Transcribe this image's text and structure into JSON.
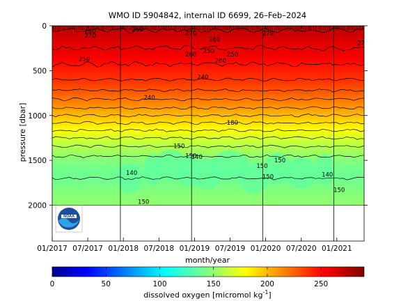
{
  "chart_data": {
    "type": "heatmap",
    "title": "WMO ID 5904842, internal ID 6699, 26–Feb–2024",
    "xlabel": "month/year",
    "ylabel": "pressure [dbar]",
    "x_ticks": [
      "01/2017",
      "07/2017",
      "01/2018",
      "07/2018",
      "01/2019",
      "07/2019",
      "01/2020",
      "07/2020",
      "01/2021"
    ],
    "x_range": [
      "2017-01",
      "2021-05"
    ],
    "y_ticks": [
      0,
      500,
      1000,
      1500,
      2000
    ],
    "y_range": [
      0,
      2400
    ],
    "y_reversed": true,
    "data_max_pressure": 2000,
    "profile_marks": "top",
    "vertical_markers": [
      "2017-12",
      "2018-12",
      "2019-12",
      "2020-12"
    ],
    "colorbar": {
      "label": "dissolved oxygen [micromol kg",
      "label_sup": "-1",
      "label_end": "]",
      "range": [
        0,
        290
      ],
      "ticks": [
        0,
        50,
        100,
        150,
        200,
        250
      ],
      "colormap": "jet"
    },
    "oxygen_profile": [
      {
        "p": 0,
        "o2": 272
      },
      {
        "p": 100,
        "o2": 268
      },
      {
        "p": 200,
        "o2": 262
      },
      {
        "p": 300,
        "o2": 258
      },
      {
        "p": 400,
        "o2": 252
      },
      {
        "p": 500,
        "o2": 245
      },
      {
        "p": 600,
        "o2": 240
      },
      {
        "p": 700,
        "o2": 232
      },
      {
        "p": 800,
        "o2": 222
      },
      {
        "p": 900,
        "o2": 212
      },
      {
        "p": 1000,
        "o2": 200
      },
      {
        "p": 1100,
        "o2": 188
      },
      {
        "p": 1200,
        "o2": 176
      },
      {
        "p": 1300,
        "o2": 164
      },
      {
        "p": 1400,
        "o2": 155
      },
      {
        "p": 1500,
        "o2": 146
      },
      {
        "p": 1600,
        "o2": 141
      },
      {
        "p": 1700,
        "o2": 140
      },
      {
        "p": 1800,
        "o2": 144
      },
      {
        "p": 1900,
        "o2": 148
      },
      {
        "p": 2000,
        "o2": 150
      }
    ],
    "contour_levels": [
      270,
      260,
      250,
      240,
      230,
      220,
      210,
      200,
      190,
      180,
      170,
      160,
      150,
      140
    ],
    "contour_labels": [
      {
        "text": "270",
        "t": "2017-07",
        "p": 110
      },
      {
        "text": "250",
        "t": "2017-06",
        "p": 370
      },
      {
        "text": "260",
        "t": "2017-07",
        "p": 60
      },
      {
        "text": "260",
        "t": "2018-03",
        "p": 40
      },
      {
        "text": "270",
        "t": "2018-12",
        "p": 80
      },
      {
        "text": "260",
        "t": "2018-12",
        "p": 320
      },
      {
        "text": "250",
        "t": "2019-03",
        "p": 280
      },
      {
        "text": "260",
        "t": "2019-04",
        "p": 150
      },
      {
        "text": "240",
        "t": "2019-02",
        "p": 570
      },
      {
        "text": "260",
        "t": "2019-05",
        "p": 390
      },
      {
        "text": "250",
        "t": "2019-07",
        "p": 320
      },
      {
        "text": "270",
        "t": "2020-01",
        "p": 80
      },
      {
        "text": "240",
        "t": "2018-05",
        "p": 800
      },
      {
        "text": "180",
        "t": "2019-07",
        "p": 1080
      },
      {
        "text": "150",
        "t": "2018-10",
        "p": 1340
      },
      {
        "text": "150",
        "t": "2018-12",
        "p": 1450
      },
      {
        "text": "140",
        "t": "2019-01",
        "p": 1460
      },
      {
        "text": "140",
        "t": "2018-02",
        "p": 1640
      },
      {
        "text": "150",
        "t": "2019-12",
        "p": 1560
      },
      {
        "text": "150",
        "t": "2020-03",
        "p": 1500
      },
      {
        "text": "150",
        "t": "2020-01",
        "p": 1680
      },
      {
        "text": "140",
        "t": "2020-11",
        "p": 1660
      },
      {
        "text": "150",
        "t": "2021-01",
        "p": 1830
      },
      {
        "text": "150",
        "t": "2018-04",
        "p": 1960
      },
      {
        "text": "270",
        "t": "2021-05",
        "p": 190
      }
    ],
    "logo_text": "NOAA"
  }
}
